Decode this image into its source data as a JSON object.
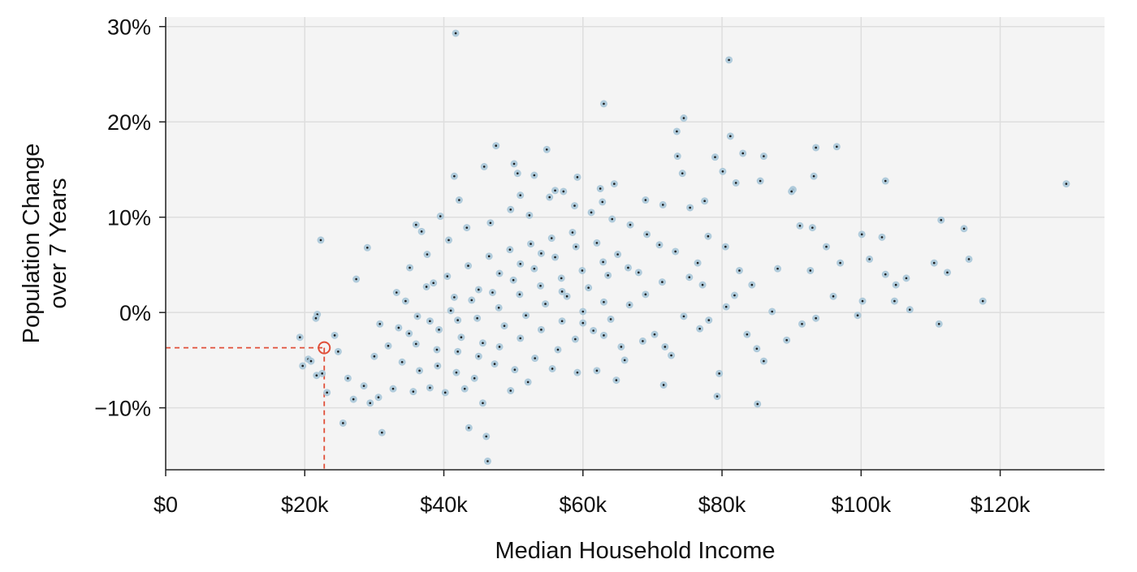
{
  "chart_data": {
    "type": "scatter",
    "title": "",
    "xlabel": "Median Household Income",
    "ylabel_lines": [
      "Population Change",
      "over 7 Years"
    ],
    "xlim": [
      0,
      135000
    ],
    "ylim": [
      -16.5,
      31
    ],
    "x_ticks": [
      {
        "value": 0,
        "label": "$0"
      },
      {
        "value": 20000,
        "label": "$20k"
      },
      {
        "value": 40000,
        "label": "$40k"
      },
      {
        "value": 60000,
        "label": "$60k"
      },
      {
        "value": 80000,
        "label": "$80k"
      },
      {
        "value": 100000,
        "label": "$100k"
      },
      {
        "value": 120000,
        "label": "$120k"
      }
    ],
    "y_ticks": [
      {
        "value": -10,
        "label": "−10%"
      },
      {
        "value": 0,
        "label": "0%"
      },
      {
        "value": 10,
        "label": "10%"
      },
      {
        "value": 20,
        "label": "20%"
      },
      {
        "value": 30,
        "label": "30%"
      }
    ],
    "grid": true,
    "colors": {
      "panel": "#f4f4f4",
      "grid": "#dedede",
      "marker_fill": "#a9c7d8",
      "marker_dot": "#1a1a1a",
      "highlight": "#e04f39"
    },
    "highlighted_point": {
      "x": 22800,
      "y": -3.7
    },
    "points": [
      [
        41700,
        29.3
      ],
      [
        81000,
        26.5
      ],
      [
        63000,
        21.9
      ],
      [
        74500,
        20.4
      ],
      [
        81200,
        18.5
      ],
      [
        73500,
        19
      ],
      [
        47500,
        17.5
      ],
      [
        54800,
        17.1
      ],
      [
        83000,
        16.7
      ],
      [
        86000,
        16.4
      ],
      [
        79000,
        16.3
      ],
      [
        73600,
        16.4
      ],
      [
        93500,
        17.3
      ],
      [
        96500,
        17.4
      ],
      [
        50100,
        15.6
      ],
      [
        45800,
        15.3
      ],
      [
        50600,
        14.6
      ],
      [
        53000,
        14.4
      ],
      [
        41500,
        14.3
      ],
      [
        59200,
        14.2
      ],
      [
        74300,
        14.6
      ],
      [
        80100,
        14.8
      ],
      [
        93200,
        14.3
      ],
      [
        103500,
        13.8
      ],
      [
        85500,
        13.8
      ],
      [
        82000,
        13.6
      ],
      [
        129500,
        13.5
      ],
      [
        64500,
        13.5
      ],
      [
        56000,
        12.8
      ],
      [
        57200,
        12.7
      ],
      [
        62500,
        13
      ],
      [
        90200,
        12.9
      ],
      [
        90000,
        12.7
      ],
      [
        51000,
        12.3
      ],
      [
        42200,
        11.8
      ],
      [
        62800,
        11.6
      ],
      [
        75400,
        11
      ],
      [
        77500,
        11.7
      ],
      [
        69000,
        11.8
      ],
      [
        71500,
        11.3
      ],
      [
        39500,
        10.1
      ],
      [
        111500,
        9.7
      ],
      [
        114800,
        8.8
      ],
      [
        36000,
        9.2
      ],
      [
        36800,
        8.5
      ],
      [
        101200,
        5.6
      ],
      [
        100100,
        8.2
      ],
      [
        103000,
        7.9
      ],
      [
        110500,
        5.2
      ],
      [
        112400,
        4.2
      ],
      [
        115500,
        5.6
      ],
      [
        117500,
        1.2
      ],
      [
        103500,
        4
      ],
      [
        106500,
        3.6
      ],
      [
        105000,
        2.9
      ],
      [
        104800,
        1.2
      ],
      [
        107000,
        0.3
      ],
      [
        100200,
        1.2
      ],
      [
        99500,
        -0.3
      ],
      [
        111200,
        -1.2
      ],
      [
        22300,
        7.6
      ],
      [
        29000,
        6.8
      ],
      [
        27400,
        3.5
      ],
      [
        21800,
        -0.2
      ],
      [
        21600,
        -0.6
      ],
      [
        19300,
        -2.6
      ],
      [
        19700,
        -5.6
      ],
      [
        20500,
        -4.9
      ],
      [
        20900,
        -5.1
      ],
      [
        21700,
        -6.6
      ],
      [
        22500,
        -6.4
      ],
      [
        23200,
        -8.4
      ],
      [
        25500,
        -11.6
      ],
      [
        31100,
        -12.6
      ],
      [
        43600,
        -12.1
      ],
      [
        46100,
        -13
      ],
      [
        46300,
        -15.6
      ],
      [
        45600,
        -9.5
      ],
      [
        85100,
        -9.6
      ],
      [
        79300,
        -8.8
      ],
      [
        72700,
        -4.5
      ],
      [
        71600,
        -7.6
      ],
      [
        79600,
        -6.4
      ],
      [
        86000,
        -5.1
      ],
      [
        89300,
        -2.9
      ],
      [
        93500,
        -0.6
      ],
      [
        96000,
        1.7
      ],
      [
        84300,
        2.9
      ],
      [
        88000,
        4.6
      ],
      [
        92700,
        4.4
      ],
      [
        95000,
        6.9
      ],
      [
        97000,
        5.2
      ],
      [
        91200,
        9.1
      ],
      [
        93000,
        8.9
      ],
      [
        82500,
        4.4
      ],
      [
        80500,
        6.9
      ],
      [
        78000,
        8
      ],
      [
        76500,
        5.2
      ],
      [
        74500,
        -0.4
      ],
      [
        76800,
        -1.7
      ],
      [
        78100,
        -0.8
      ],
      [
        83600,
        -2.3
      ],
      [
        85000,
        -3.8
      ],
      [
        91500,
        -1.2
      ],
      [
        87200,
        0.1
      ],
      [
        80600,
        0.6
      ],
      [
        81800,
        1.8
      ],
      [
        27000,
        -9.1
      ],
      [
        24300,
        -2.4
      ],
      [
        24800,
        -4.1
      ],
      [
        26200,
        -6.9
      ],
      [
        28500,
        -7.7
      ],
      [
        29400,
        -9.5
      ],
      [
        30600,
        -8.9
      ],
      [
        32700,
        -8
      ],
      [
        35600,
        -8.3
      ],
      [
        38000,
        -7.9
      ],
      [
        40200,
        -8.4
      ],
      [
        43000,
        -8
      ],
      [
        49600,
        -8.2
      ],
      [
        52100,
        -7.3
      ],
      [
        55600,
        -5.9
      ],
      [
        59200,
        -6.3
      ],
      [
        62000,
        -6.1
      ],
      [
        64800,
        -7.1
      ],
      [
        66000,
        -5
      ],
      [
        68600,
        -3
      ],
      [
        70300,
        -2.3
      ],
      [
        71800,
        -3.6
      ],
      [
        30800,
        -1.2
      ],
      [
        33200,
        2.1
      ],
      [
        35100,
        4.7
      ],
      [
        37600,
        6.1
      ],
      [
        40700,
        7.6
      ],
      [
        43300,
        8.9
      ],
      [
        46700,
        9.4
      ],
      [
        49600,
        10.8
      ],
      [
        52300,
        10.2
      ],
      [
        55200,
        12.1
      ],
      [
        58800,
        11.2
      ],
      [
        61200,
        10.5
      ],
      [
        64200,
        9.8
      ],
      [
        66800,
        9.2
      ],
      [
        69200,
        8.2
      ],
      [
        71000,
        7.1
      ],
      [
        73300,
        6.4
      ],
      [
        75300,
        3.7
      ],
      [
        77200,
        2.9
      ],
      [
        34000,
        -5.2
      ],
      [
        36500,
        -6.1
      ],
      [
        39100,
        -5.6
      ],
      [
        41800,
        -6.3
      ],
      [
        44400,
        -6.9
      ],
      [
        47300,
        -5.4
      ],
      [
        50200,
        -6
      ],
      [
        53100,
        -4.8
      ],
      [
        56400,
        -3.9
      ],
      [
        58900,
        -2.8
      ],
      [
        61500,
        -1.9
      ],
      [
        64000,
        -0.7
      ],
      [
        66700,
        0.8
      ],
      [
        69000,
        1.9
      ],
      [
        71400,
        3.2
      ],
      [
        32000,
        -3.5
      ],
      [
        35000,
        -2.2
      ],
      [
        38000,
        -0.9
      ],
      [
        41000,
        0.2
      ],
      [
        44000,
        1.3
      ],
      [
        47000,
        2.1
      ],
      [
        50000,
        3.4
      ],
      [
        53000,
        4.6
      ],
      [
        56000,
        5.8
      ],
      [
        59000,
        6.9
      ],
      [
        62000,
        7.3
      ],
      [
        65000,
        6.1
      ],
      [
        68000,
        4.2
      ],
      [
        30000,
        -4.6
      ],
      [
        33500,
        -1.6
      ],
      [
        36200,
        -0.4
      ],
      [
        39300,
        -1.8
      ],
      [
        42500,
        -2.6
      ],
      [
        45600,
        -3.2
      ],
      [
        48700,
        -1.4
      ],
      [
        51800,
        -0.3
      ],
      [
        54600,
        0.9
      ],
      [
        57700,
        1.7
      ],
      [
        60800,
        2.6
      ],
      [
        63600,
        3.9
      ],
      [
        66500,
        4.7
      ],
      [
        34500,
        1.2
      ],
      [
        37500,
        2.7
      ],
      [
        40500,
        3.8
      ],
      [
        43500,
        4.9
      ],
      [
        46500,
        5.9
      ],
      [
        49500,
        6.6
      ],
      [
        52500,
        7.2
      ],
      [
        55500,
        7.8
      ],
      [
        58500,
        8.4
      ],
      [
        42000,
        -4.1
      ],
      [
        45000,
        -4.6
      ],
      [
        48000,
        -3.6
      ],
      [
        51000,
        -2.7
      ],
      [
        54000,
        -1.8
      ],
      [
        57000,
        -0.9
      ],
      [
        60000,
        0.1
      ],
      [
        63000,
        1.1
      ],
      [
        38500,
        3.1
      ],
      [
        41500,
        1.6
      ],
      [
        44800,
        -0.6
      ],
      [
        47900,
        0.5
      ],
      [
        50900,
        1.9
      ],
      [
        53900,
        2.8
      ],
      [
        56900,
        3.6
      ],
      [
        59900,
        4.4
      ],
      [
        62900,
        5.3
      ],
      [
        36000,
        -3.3
      ],
      [
        39000,
        -3.9
      ],
      [
        42000,
        -0.8
      ],
      [
        45000,
        2.4
      ],
      [
        48000,
        4.1
      ],
      [
        51000,
        5.1
      ],
      [
        54000,
        6.2
      ],
      [
        57000,
        2.2
      ],
      [
        60000,
        -1.1
      ],
      [
        63000,
        -2.4
      ],
      [
        65500,
        -3.6
      ]
    ]
  }
}
